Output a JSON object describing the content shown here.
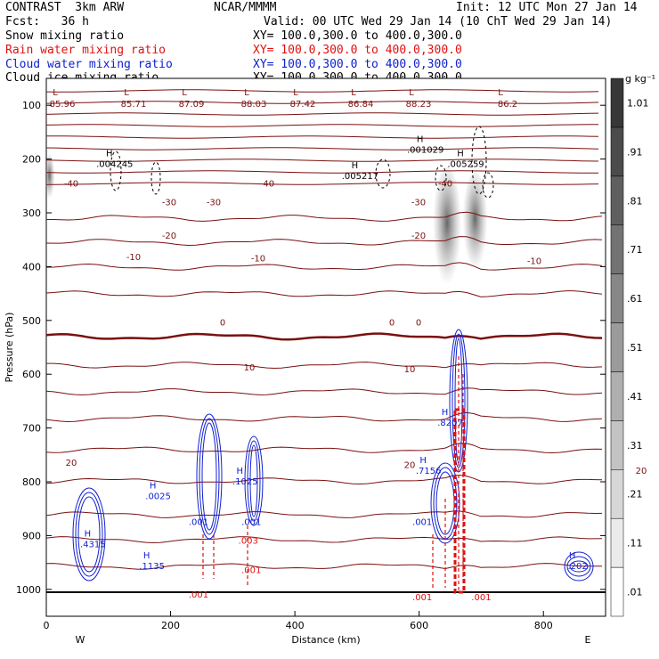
{
  "header": {
    "model": "CONTRAST  3km ARW",
    "org": "NCAR/MMMM",
    "init": "Init: 12 UTC Mon 27 Jan 14",
    "fcst": "Fcst:   36 h",
    "valid": "Valid: 00 UTC Wed 29 Jan 14 (10 ChT Wed 29 Jan 14)",
    "fields": [
      {
        "name": "Snow mixing ratio",
        "xy": "XY= 100.0,300.0 to 400.0,300.0",
        "color": "#000000"
      },
      {
        "name": "Rain water mixing ratio",
        "xy": "XY= 100.0,300.0 to 400.0,300.0",
        "color": "#e01010"
      },
      {
        "name": "Cloud water mixing ratio",
        "xy": "XY= 100.0,300.0 to 400.0,300.0",
        "color": "#1020d0"
      },
      {
        "name": "Cloud ice mixing ratio",
        "xy": "XY= 100.0,300.0 to 400.0,300.0",
        "color": "#000000"
      }
    ]
  },
  "chart_data": {
    "type": "cross-section",
    "xlabel": "Distance (km)",
    "ylabel": "Pressure (hPa)",
    "xlim": [
      0,
      900
    ],
    "ylim": [
      1050,
      50
    ],
    "x_ticks": [
      0,
      200,
      400,
      600,
      800
    ],
    "y_ticks": [
      100,
      200,
      300,
      400,
      500,
      600,
      700,
      800,
      900,
      1000
    ],
    "x_end_labels": {
      "left": "W",
      "right": "E"
    },
    "colorbar": {
      "unit": "g kg⁻¹",
      "levels": [
        ".01",
        ".11",
        ".21",
        ".31",
        ".41",
        ".51",
        ".61",
        ".71",
        ".81",
        ".91",
        "1.01"
      ]
    },
    "temperature_contours": [
      {
        "label": "-40",
        "positions": [
          [
            80,
            262
          ],
          [
            300,
            262
          ],
          [
            500,
            262
          ],
          [
            760,
            262
          ]
        ]
      },
      {
        "label": "-30",
        "positions": [
          [
            190,
            290
          ],
          [
            240,
            290
          ],
          [
            470,
            290
          ],
          [
            760,
            300
          ]
        ]
      },
      {
        "label": "-20",
        "positions": [
          [
            190,
            340
          ],
          [
            470,
            340
          ],
          [
            760,
            340
          ]
        ]
      },
      {
        "label": "-10",
        "positions": [
          [
            150,
            372
          ],
          [
            290,
            374
          ],
          [
            600,
            378
          ],
          [
            800,
            384
          ]
        ]
      },
      {
        "label": "0",
        "positions": [
          [
            250,
            470
          ],
          [
            440,
            470
          ],
          [
            470,
            470
          ],
          [
            760,
            470
          ]
        ]
      },
      {
        "label": "10",
        "positions": [
          [
            280,
            537
          ],
          [
            460,
            540
          ],
          [
            750,
            558
          ]
        ]
      },
      {
        "label": "20",
        "positions": [
          [
            80,
            680
          ],
          [
            460,
            683
          ],
          [
            720,
            692
          ]
        ]
      }
    ],
    "top_labels": [
      "85.96",
      "85.71",
      "87.09",
      "88.03",
      "87.42",
      "86.84",
      "88.23",
      "86.2"
    ],
    "maxima_labels": [
      {
        "text": ".004245",
        "x": 110,
        "p": 215
      },
      {
        "text": ".005217",
        "x": 505,
        "p": 237
      },
      {
        "text": ".001029",
        "x": 610,
        "p": 188
      },
      {
        "text": ".005259",
        "x": 675,
        "p": 215
      },
      {
        "text": ".0025",
        "x": 180,
        "p": 832
      },
      {
        "text": ".1025",
        "x": 320,
        "p": 805
      },
      {
        "text": ".7156",
        "x": 615,
        "p": 785
      },
      {
        "text": ".8207",
        "x": 650,
        "p": 696
      },
      {
        "text": ".4315",
        "x": 75,
        "p": 922
      },
      {
        "text": ".1135",
        "x": 170,
        "p": 962
      },
      {
        "text": ".202",
        "x": 855,
        "p": 962
      }
    ],
    "small_labels": [
      {
        "text": ".001",
        "x": 245,
        "p": 880,
        "color": "#1020d0"
      },
      {
        "text": ".001",
        "x": 330,
        "p": 880,
        "color": "#1020d0"
      },
      {
        "text": ".003",
        "x": 325,
        "p": 915,
        "color": "#e01010"
      },
      {
        "text": ".001",
        "x": 330,
        "p": 970,
        "color": "#e01010"
      },
      {
        "text": ".001",
        "x": 245,
        "p": 1015,
        "color": "#e01010"
      },
      {
        "text": ".001",
        "x": 605,
        "p": 880,
        "color": "#1020d0"
      },
      {
        "text": ".001",
        "x": 605,
        "p": 1020,
        "color": "#e01010"
      },
      {
        "text": ".001",
        "x": 700,
        "p": 1020,
        "color": "#e01010"
      }
    ]
  }
}
